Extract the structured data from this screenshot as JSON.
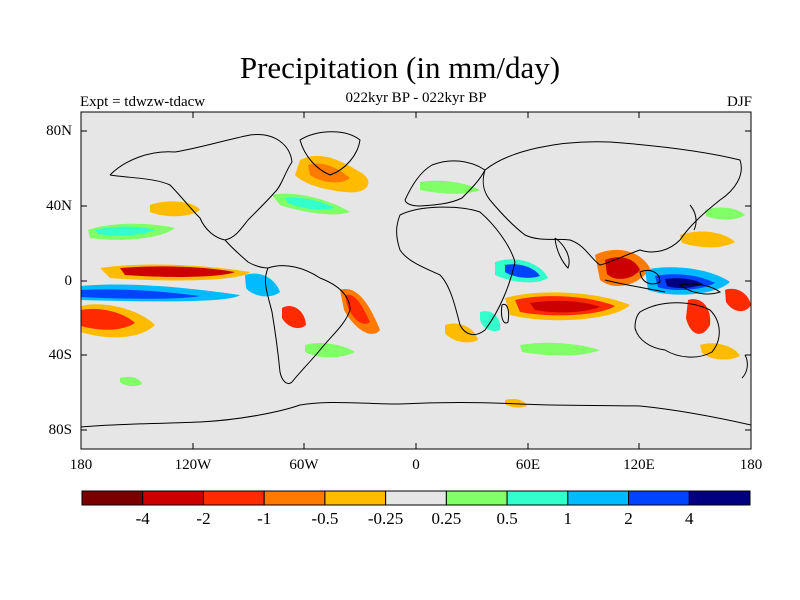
{
  "title": "Precipitation (in mm/day)",
  "subtitle": "022kyr BP - 022kyr BP",
  "left_label": "Expt = tdwzw-tdacw",
  "right_label": "DJF",
  "lat_ticks": [
    "80N",
    "40N",
    "0",
    "40S",
    "80S"
  ],
  "lon_ticks": [
    "180",
    "120W",
    "60W",
    "0",
    "60E",
    "120E",
    "180"
  ],
  "colorbar": {
    "colors": [
      "#7a0000",
      "#cc0000",
      "#ff2a00",
      "#ff7a00",
      "#ffbb00",
      "#e6e6e6",
      "#80ff66",
      "#33ffcc",
      "#00bbff",
      "#0044ff",
      "#000080"
    ],
    "labels": [
      "-4",
      "-2",
      "-1",
      "-0.5",
      "-0.25",
      "0.25",
      "0.5",
      "1",
      "2",
      "4"
    ]
  },
  "colors": {
    "land_ocean_background": "#e6e6e6",
    "coastline": "#000000"
  }
}
